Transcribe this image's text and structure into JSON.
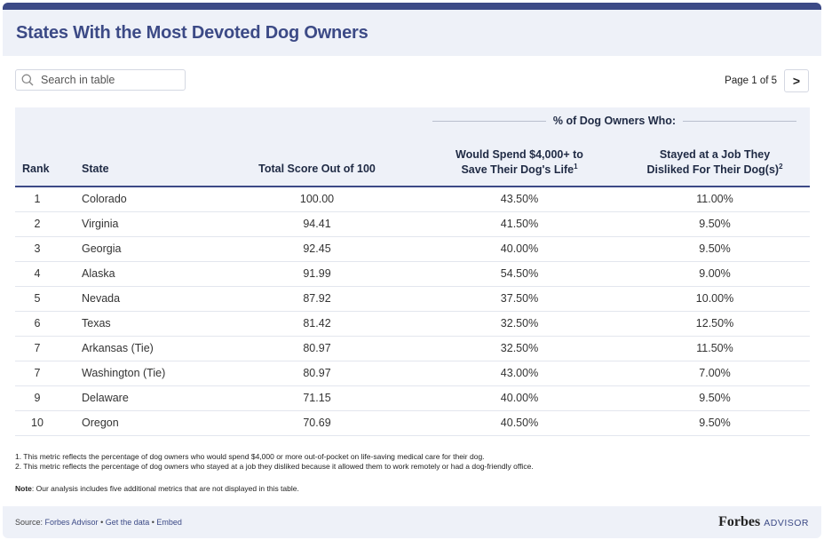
{
  "title": "States With the Most Devoted Dog Owners",
  "search": {
    "placeholder": "Search in table"
  },
  "pager": {
    "text": "Page 1 of 5",
    "next_symbol": ">"
  },
  "table": {
    "group_label": "% of Dog Owners Who:",
    "headers": {
      "rank": "Rank",
      "state": "State",
      "score": "Total Score Out of 100",
      "spend_line1": "Would Spend $4,000+ to",
      "spend_line2": "Save Their Dog's Life",
      "spend_sup": "1",
      "job_line1": "Stayed at a Job They",
      "job_line2": "Disliked For Their Dog(s)",
      "job_sup": "2"
    },
    "rows": [
      {
        "rank": "1",
        "state": "Colorado",
        "score": "100.00",
        "spend": "43.50%",
        "job": "11.00%"
      },
      {
        "rank": "2",
        "state": "Virginia",
        "score": "94.41",
        "spend": "41.50%",
        "job": "9.50%"
      },
      {
        "rank": "3",
        "state": "Georgia",
        "score": "92.45",
        "spend": "40.00%",
        "job": "9.50%"
      },
      {
        "rank": "4",
        "state": "Alaska",
        "score": "91.99",
        "spend": "54.50%",
        "job": "9.00%"
      },
      {
        "rank": "5",
        "state": "Nevada",
        "score": "87.92",
        "spend": "37.50%",
        "job": "10.00%"
      },
      {
        "rank": "6",
        "state": "Texas",
        "score": "81.42",
        "spend": "32.50%",
        "job": "12.50%"
      },
      {
        "rank": "7",
        "state": "Arkansas (Tie)",
        "score": "80.97",
        "spend": "32.50%",
        "job": "11.50%"
      },
      {
        "rank": "7",
        "state": "Washington (Tie)",
        "score": "80.97",
        "spend": "43.00%",
        "job": "7.00%"
      },
      {
        "rank": "9",
        "state": "Delaware",
        "score": "71.15",
        "spend": "40.00%",
        "job": "9.50%"
      },
      {
        "rank": "10",
        "state": "Oregon",
        "score": "70.69",
        "spend": "40.50%",
        "job": "9.50%"
      }
    ]
  },
  "notes": {
    "note1": "1. This metric reflects the percentage of dog owners who would spend $4,000 or more out-of-pocket on life-saving medical care for their dog.",
    "note2": "2. This metric reflects the percentage of dog owners who stayed at a job they disliked because it allowed them to work remotely or had a dog-friendly office.",
    "note_label": "Note",
    "note_text": ": Our analysis includes five additional metrics that are not displayed in this table."
  },
  "footer": {
    "source_label": "Source: ",
    "source_link": "Forbes Advisor",
    "sep": " • ",
    "get_data": "Get the data",
    "embed": "Embed",
    "brand_main": "Forbes",
    "brand_sub": "ADVISOR"
  },
  "colors": {
    "accent": "#3c4a86",
    "header_bg": "#eef1f8"
  },
  "icons": {
    "search": "search-icon",
    "next": "chevron-right-icon"
  }
}
